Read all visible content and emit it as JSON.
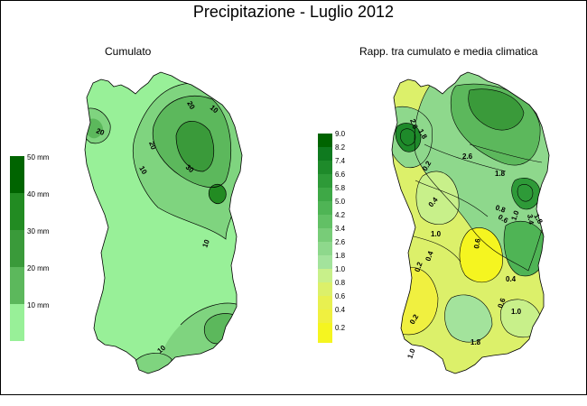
{
  "title": "Precipitazione - Luglio 2012",
  "left_panel": {
    "subtitle": "Cumulato",
    "legend": {
      "labels": [
        "50 mm",
        "40 mm",
        "30 mm",
        "20 mm",
        "10 mm"
      ],
      "colors": [
        "#006400",
        "#228b22",
        "#3a9a3a",
        "#5cb85c",
        "#7fd47f",
        "#98f098"
      ]
    },
    "contour_labels": [
      "10",
      "20",
      "30",
      "20",
      "10",
      "20",
      "10",
      "10"
    ]
  },
  "right_panel": {
    "subtitle": "Rapp. tra cumulato e media climatica",
    "legend": {
      "labels": [
        "9.0",
        "8.2",
        "7.4",
        "6.6",
        "5.8",
        "5.0",
        "4.2",
        "3.4",
        "2.6",
        "1.8",
        "1.0",
        "0.8",
        "0.6",
        "0.4",
        "0.2"
      ],
      "colors": [
        "#006400",
        "#0f7a1f",
        "#1e8a2a",
        "#2e9a38",
        "#3ea846",
        "#4fb455",
        "#62c065",
        "#78cc78",
        "#8ed88c",
        "#a3e39c",
        "#c8f08a",
        "#dcf06a",
        "#e8f050",
        "#f0f040",
        "#f5f520"
      ]
    },
    "contour_labels": [
      "2.6",
      "1.8",
      "2.6",
      "1.8",
      "0.2",
      "0.4",
      "1.0",
      "0.6",
      "0.4",
      "0.2",
      "1.0",
      "1.8",
      "0.6",
      "0.4",
      "1.0",
      "1.8",
      "0.2",
      "1.0",
      "3.4",
      "0.8",
      "0.6"
    ]
  }
}
